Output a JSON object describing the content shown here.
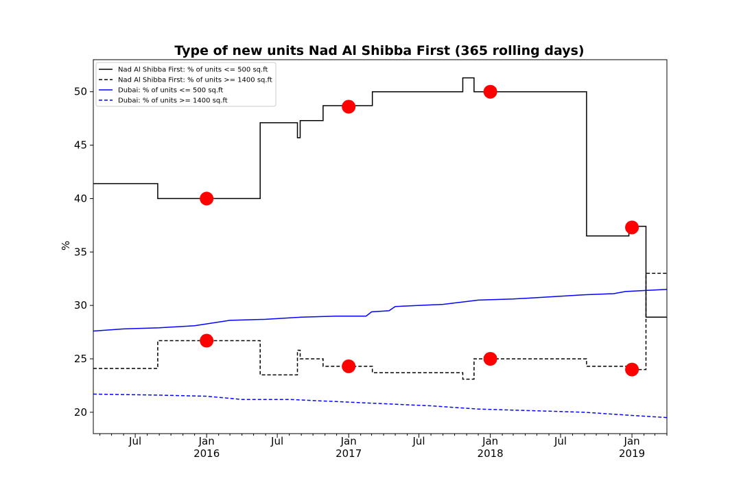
{
  "chart_data": {
    "type": "line",
    "title": "Type of new units Nad Al Shibba First (365 rolling days)",
    "xlabel": "",
    "ylabel": "%",
    "xlim": [
      "2015-03-15",
      "2019-04-01"
    ],
    "ylim": [
      18,
      53
    ],
    "y_ticks": [
      20,
      25,
      30,
      35,
      40,
      45,
      50
    ],
    "x_ticks": [
      {
        "date": "2015-07-01",
        "label": "Jul",
        "year": ""
      },
      {
        "date": "2016-01-01",
        "label": "Jan",
        "year": "2016"
      },
      {
        "date": "2016-07-01",
        "label": "Jul",
        "year": ""
      },
      {
        "date": "2017-01-01",
        "label": "Jan",
        "year": "2017"
      },
      {
        "date": "2017-07-01",
        "label": "Jul",
        "year": ""
      },
      {
        "date": "2018-01-01",
        "label": "Jan",
        "year": "2018"
      },
      {
        "date": "2018-07-01",
        "label": "Jul",
        "year": ""
      },
      {
        "date": "2019-01-01",
        "label": "Jan",
        "year": "2019"
      }
    ],
    "grid": false,
    "legend_position": "top-left",
    "series": [
      {
        "name": "Nad Al Shibba First: % of units <= 500 sq.ft",
        "color": "#000000",
        "dashed": false,
        "step": true,
        "points": [
          [
            "2015-03-15",
            41.4
          ],
          [
            "2015-08-28",
            40.0
          ],
          [
            "2016-05-18",
            47.1
          ],
          [
            "2016-08-22",
            45.7
          ],
          [
            "2016-08-29",
            47.3
          ],
          [
            "2016-10-27",
            48.7
          ],
          [
            "2017-03-03",
            50.0
          ],
          [
            "2017-10-22",
            51.3
          ],
          [
            "2017-11-20",
            50.0
          ],
          [
            "2018-09-06",
            36.5
          ],
          [
            "2018-12-24",
            37.4
          ],
          [
            "2019-02-06",
            28.9
          ],
          [
            "2019-04-01",
            28.9
          ]
        ]
      },
      {
        "name": "Nad Al Shibba First: % of units >= 1400 sq.ft",
        "color": "#000000",
        "dashed": true,
        "step": true,
        "points": [
          [
            "2015-03-15",
            24.1
          ],
          [
            "2015-08-28",
            26.7
          ],
          [
            "2016-05-18",
            23.5
          ],
          [
            "2016-08-22",
            25.8
          ],
          [
            "2016-08-29",
            25.0
          ],
          [
            "2016-10-27",
            24.3
          ],
          [
            "2017-03-03",
            23.7
          ],
          [
            "2017-10-22",
            23.1
          ],
          [
            "2017-11-20",
            25.0
          ],
          [
            "2018-09-06",
            24.3
          ],
          [
            "2018-12-24",
            24.0
          ],
          [
            "2019-02-06",
            33.0
          ],
          [
            "2019-04-01",
            33.0
          ]
        ]
      },
      {
        "name": "Dubai: % of units <= 500 sq.ft",
        "color": "#0000ff",
        "dashed": false,
        "step": false,
        "points": [
          [
            "2015-03-15",
            27.6
          ],
          [
            "2015-06-01",
            27.8
          ],
          [
            "2015-09-01",
            27.9
          ],
          [
            "2015-12-01",
            28.1
          ],
          [
            "2016-03-01",
            28.6
          ],
          [
            "2016-06-01",
            28.7
          ],
          [
            "2016-09-01",
            28.9
          ],
          [
            "2016-12-01",
            29.0
          ],
          [
            "2017-02-15",
            29.0
          ],
          [
            "2017-03-01",
            29.4
          ],
          [
            "2017-04-15",
            29.5
          ],
          [
            "2017-05-01",
            29.9
          ],
          [
            "2017-09-01",
            30.1
          ],
          [
            "2017-12-01",
            30.5
          ],
          [
            "2018-03-01",
            30.6
          ],
          [
            "2018-06-01",
            30.8
          ],
          [
            "2018-09-01",
            31.0
          ],
          [
            "2018-11-15",
            31.1
          ],
          [
            "2018-12-15",
            31.3
          ],
          [
            "2019-04-01",
            31.5
          ]
        ]
      },
      {
        "name": "Dubai: % of units >= 1400 sq.ft",
        "color": "#0000ff",
        "dashed": true,
        "step": false,
        "points": [
          [
            "2015-03-15",
            21.7
          ],
          [
            "2015-09-01",
            21.6
          ],
          [
            "2016-01-01",
            21.5
          ],
          [
            "2016-04-01",
            21.2
          ],
          [
            "2016-08-01",
            21.2
          ],
          [
            "2016-12-01",
            21.0
          ],
          [
            "2017-04-01",
            20.8
          ],
          [
            "2017-08-01",
            20.6
          ],
          [
            "2017-12-01",
            20.3
          ],
          [
            "2018-06-01",
            20.1
          ],
          [
            "2018-09-01",
            20.0
          ],
          [
            "2019-01-01",
            19.7
          ],
          [
            "2019-04-01",
            19.5
          ]
        ]
      }
    ],
    "markers": {
      "color": "#ff0000",
      "points": [
        [
          "2016-01-01",
          40.0
        ],
        [
          "2017-01-01",
          48.6
        ],
        [
          "2018-01-01",
          50.0
        ],
        [
          "2019-01-01",
          37.3
        ],
        [
          "2016-01-01",
          26.7
        ],
        [
          "2017-01-01",
          24.3
        ],
        [
          "2018-01-01",
          25.0
        ],
        [
          "2019-01-01",
          24.0
        ]
      ]
    }
  }
}
